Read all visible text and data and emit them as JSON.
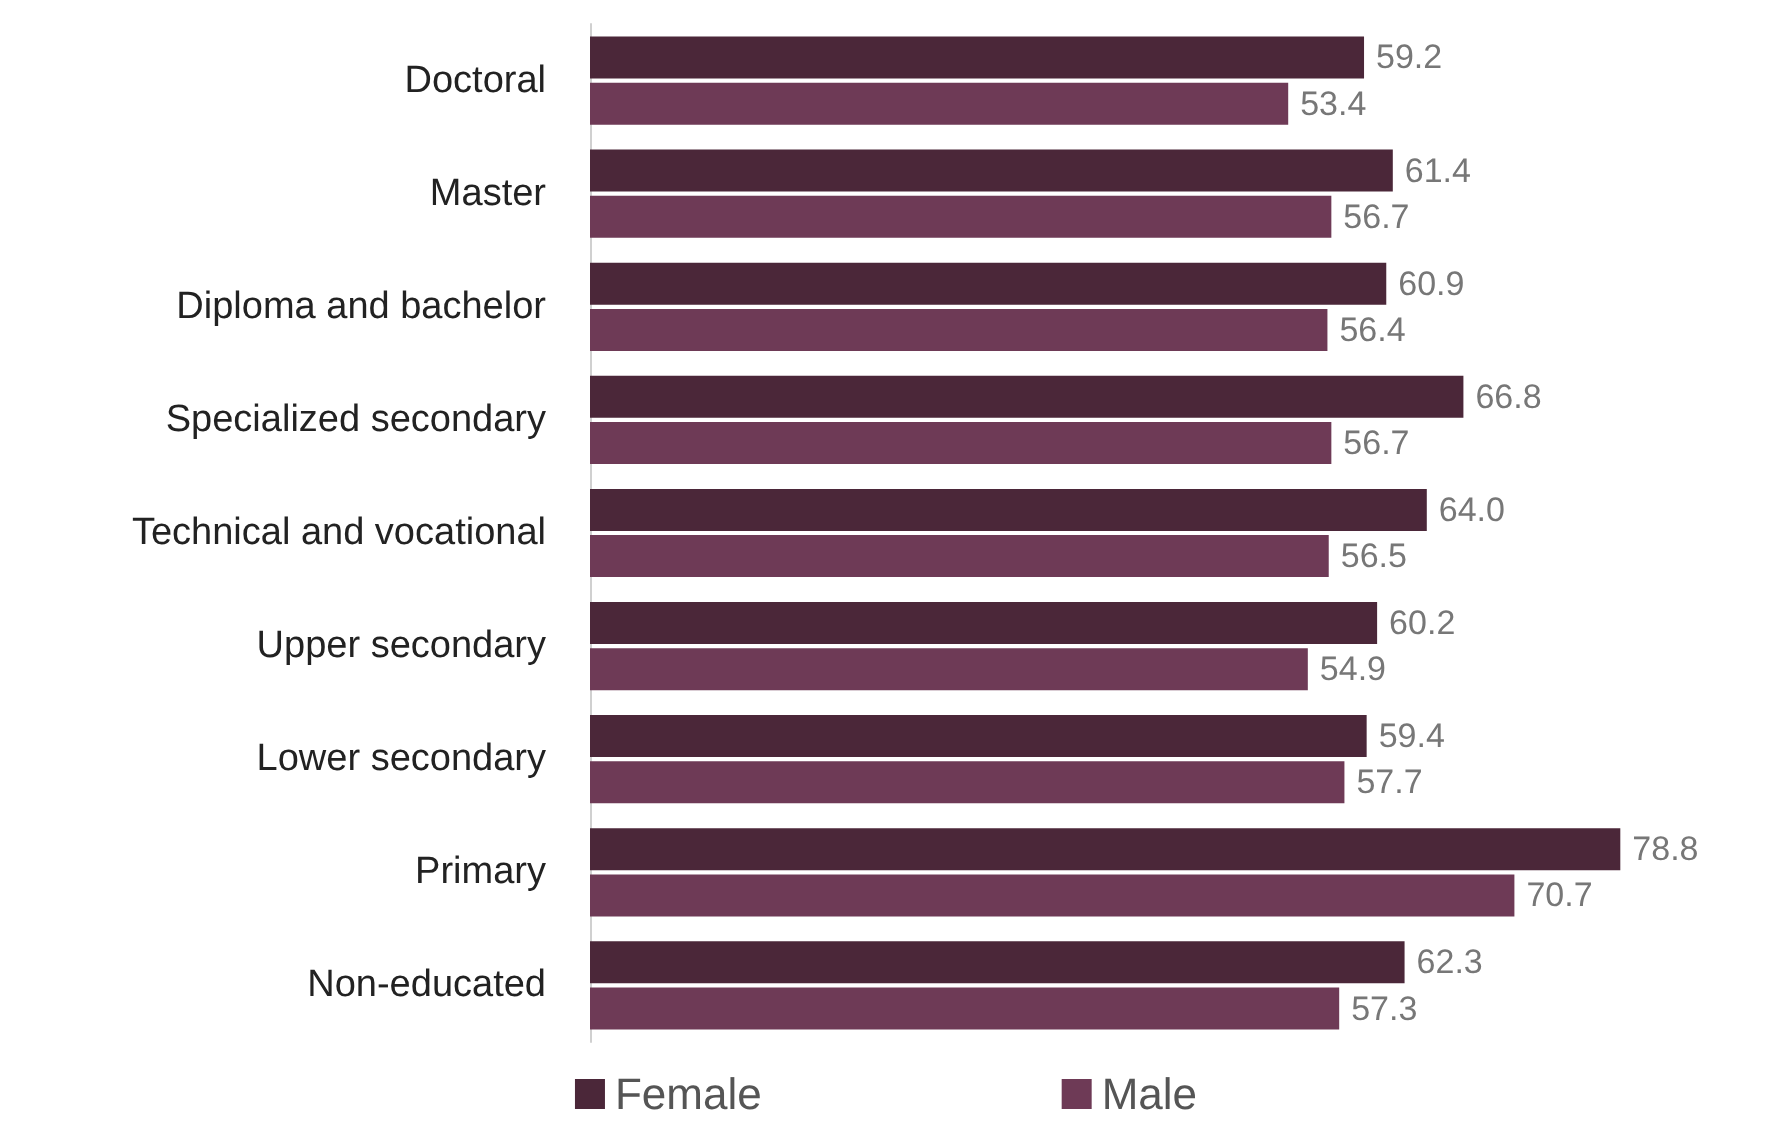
{
  "chart_data": {
    "type": "bar",
    "orientation": "horizontal",
    "categories": [
      "Doctoral",
      "Master",
      "Diploma and bachelor",
      "Specialized secondary",
      "Technical and vocational",
      "Upper secondary",
      "Lower secondary",
      "Primary",
      "Non-educated"
    ],
    "series": [
      {
        "name": "Female",
        "color": "#4b2739",
        "values": [
          59.2,
          61.4,
          60.9,
          66.8,
          64.0,
          60.2,
          59.4,
          78.8,
          62.3
        ],
        "value_labels": [
          "59.2",
          "61.4",
          "60.9",
          "66.8",
          "64.0",
          "60.2",
          "59.4",
          "78.8",
          "62.3"
        ]
      },
      {
        "name": "Male",
        "color": "#6e3a56",
        "values": [
          53.4,
          56.7,
          56.4,
          56.7,
          56.5,
          54.9,
          57.7,
          70.7,
          57.3
        ],
        "value_labels": [
          "53.4",
          "56.7",
          "56.4",
          "56.7",
          "56.5",
          "54.9",
          "57.7",
          "70.7",
          "57.3"
        ]
      }
    ],
    "legend": "bottom"
  }
}
